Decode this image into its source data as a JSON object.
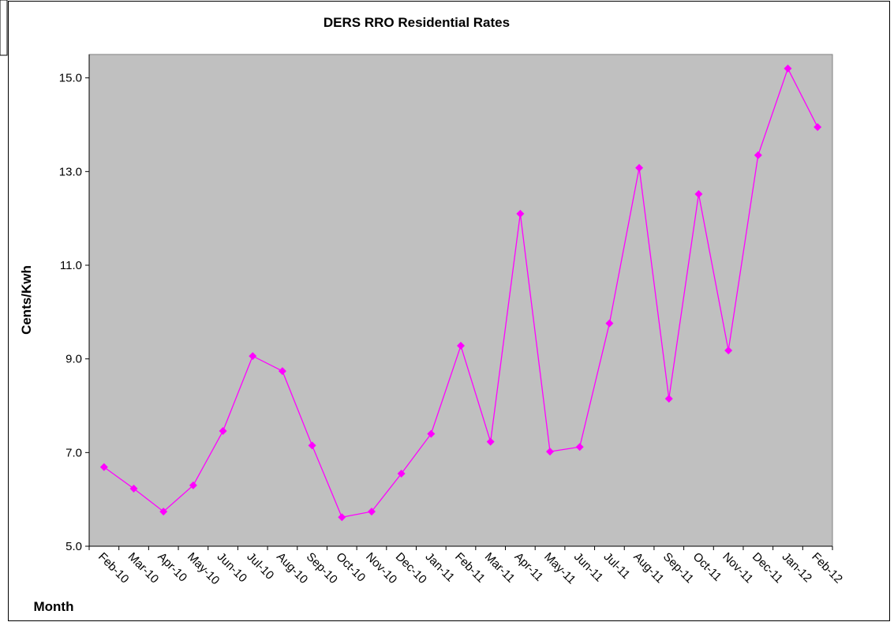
{
  "chart_data": {
    "type": "line",
    "title": "DERS RRO Residential Rates",
    "x_label": "Month",
    "y_label": "Cents/Kwh",
    "categories": [
      "Feb-10",
      "Mar-10",
      "Apr-10",
      "May-10",
      "Jun-10",
      "Jul-10",
      "Aug-10",
      "Sep-10",
      "Oct-10",
      "Nov-10",
      "Dec-10",
      "Jan-11",
      "Feb-11",
      "Mar-11",
      "Apr-11",
      "May-11",
      "Jun-11",
      "Jul-11",
      "Aug-11",
      "Sep-11",
      "Oct-11",
      "Nov-11",
      "Dec-11",
      "Jan-12",
      "Feb-12"
    ],
    "series": [
      {
        "name": "Cents/Kwh",
        "color": "#ff00ff",
        "values": [
          6.69,
          6.23,
          5.74,
          6.3,
          7.46,
          9.06,
          8.74,
          7.15,
          5.62,
          5.74,
          6.55,
          7.4,
          9.28,
          7.23,
          12.1,
          7.02,
          7.12,
          9.76,
          13.08,
          8.15,
          12.52,
          9.18,
          13.35,
          15.2,
          13.95
        ]
      }
    ],
    "ylim": [
      5,
      15.5
    ],
    "yticks": [
      {
        "value": 5,
        "label": "5.0"
      },
      {
        "value": 7,
        "label": "7.0"
      },
      {
        "value": 9,
        "label": "9.0"
      },
      {
        "value": 11,
        "label": "11.0"
      },
      {
        "value": 13,
        "label": "13.0"
      },
      {
        "value": 15,
        "label": "15.0"
      }
    ],
    "plot_color": "#c0c0c0",
    "grid": false
  }
}
